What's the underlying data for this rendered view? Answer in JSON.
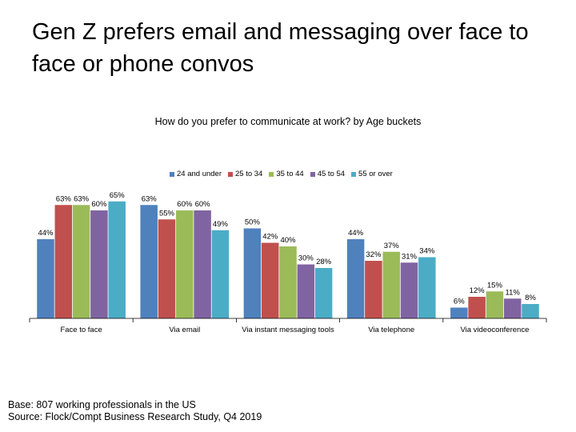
{
  "slide": {
    "title": "Gen Z prefers email and messaging over face to face or phone convos"
  },
  "footer": {
    "base": "Base: 807 working professionals in the US",
    "source": "Source: Flock/Compt Business Research Study, Q4 2019"
  },
  "chart_data": {
    "type": "bar",
    "title": "How do you prefer to communicate at work? by Age buckets",
    "xlabel": "",
    "ylabel": "",
    "ylim": [
      0,
      100
    ],
    "value_suffix": "%",
    "legend_position": "top",
    "grid": false,
    "categories": [
      "Face to face",
      "Via email",
      "Via instant messaging tools",
      "Via telephone",
      "Via videoconference"
    ],
    "series": [
      {
        "name": "24 and under",
        "color": "#4F81BD",
        "values": [
          44,
          63,
          50,
          44,
          6
        ]
      },
      {
        "name": "25 to 34",
        "color": "#C0504D",
        "values": [
          63,
          55,
          42,
          32,
          12
        ]
      },
      {
        "name": "35 to 44",
        "color": "#9BBB59",
        "values": [
          63,
          60,
          40,
          37,
          15
        ]
      },
      {
        "name": "45 to 54",
        "color": "#8064A2",
        "values": [
          60,
          60,
          30,
          31,
          11
        ]
      },
      {
        "name": "55 or over",
        "color": "#4BACC6",
        "values": [
          65,
          49,
          28,
          34,
          8
        ]
      }
    ]
  }
}
